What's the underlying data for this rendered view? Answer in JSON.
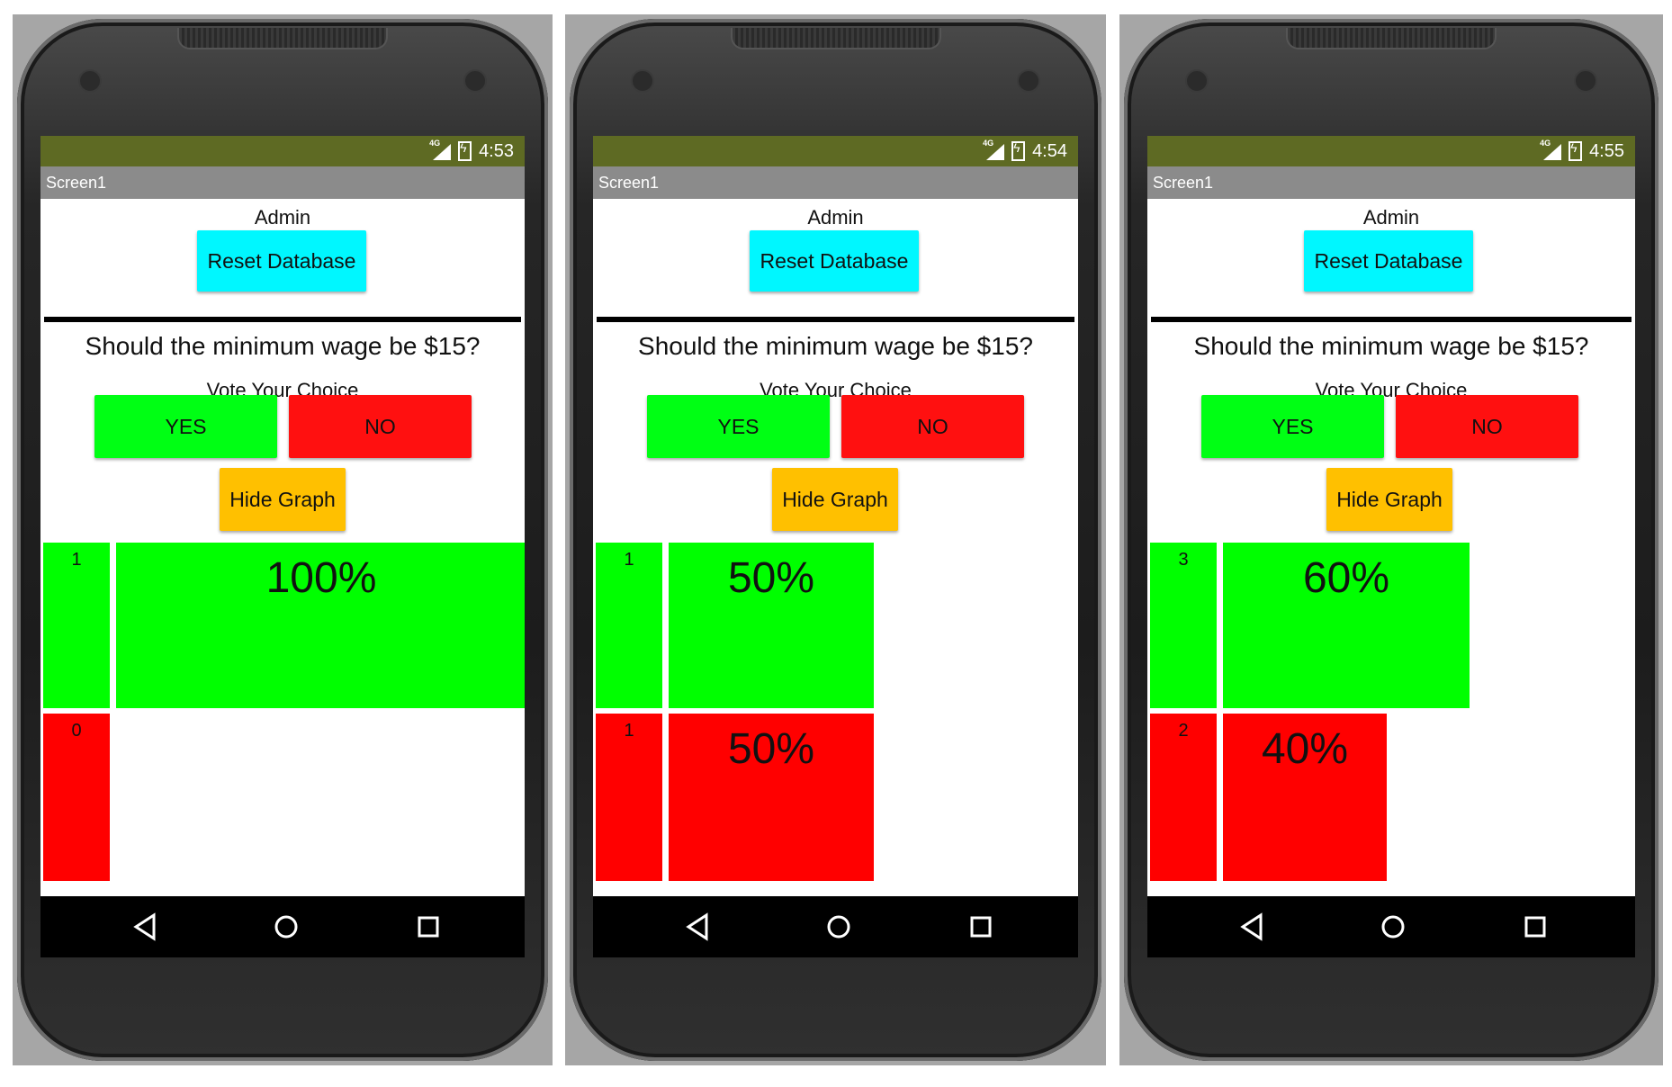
{
  "screens": [
    {
      "status": {
        "network": "4G",
        "time": "4:53"
      },
      "app_title": "Screen1",
      "admin_label": "Admin",
      "reset_button": "Reset Database",
      "question": "Should the minimum wage be $15?",
      "vote_label": "Vote Your Choice",
      "yes_button": "YES",
      "no_button": "NO",
      "hide_graph_button": "Hide Graph",
      "yes_count": "1",
      "no_count": "0",
      "yes_percent_label": "100%",
      "no_percent_label": "",
      "yes_fraction": 1.0,
      "no_fraction": 0.0
    },
    {
      "status": {
        "network": "4G",
        "time": "4:54"
      },
      "app_title": "Screen1",
      "admin_label": "Admin",
      "reset_button": "Reset Database",
      "question": "Should the minimum wage be $15?",
      "vote_label": "Vote Your Choice",
      "yes_button": "YES",
      "no_button": "NO",
      "hide_graph_button": "Hide Graph",
      "yes_count": "1",
      "no_count": "1",
      "yes_percent_label": "50%",
      "no_percent_label": "50%",
      "yes_fraction": 0.5,
      "no_fraction": 0.5
    },
    {
      "status": {
        "network": "4G",
        "time": "4:55"
      },
      "app_title": "Screen1",
      "admin_label": "Admin",
      "reset_button": "Reset Database",
      "question": "Should the minimum wage be $15?",
      "vote_label": "Vote Your Choice",
      "yes_button": "YES",
      "no_button": "NO",
      "hide_graph_button": "Hide Graph",
      "yes_count": "3",
      "no_count": "2",
      "yes_percent_label": "60%",
      "no_percent_label": "40%",
      "yes_fraction": 0.6,
      "no_fraction": 0.4
    }
  ],
  "colors": {
    "status_bar": "#5e6a23",
    "title_bar": "#8b8b8b",
    "reset": "#00f7ff",
    "yes": "#00ff14",
    "no": "#ff1010",
    "hide_graph": "#ffc000"
  },
  "nav_icons": [
    "back-icon",
    "home-icon",
    "recents-icon"
  ]
}
